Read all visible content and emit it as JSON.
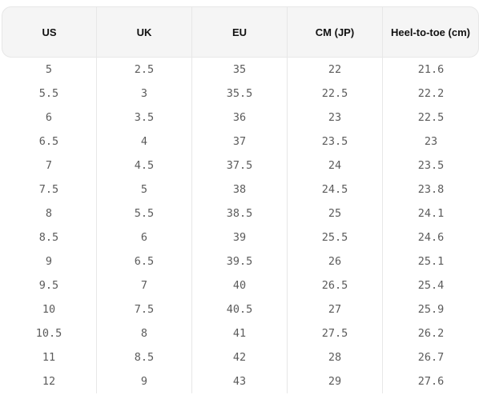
{
  "table": {
    "headers": [
      "US",
      "UK",
      "EU",
      "CM (JP)",
      "Heel-to-toe (cm)"
    ],
    "rows": [
      [
        "5",
        "2.5",
        "35",
        "22",
        "21.6"
      ],
      [
        "5.5",
        "3",
        "35.5",
        "22.5",
        "22.2"
      ],
      [
        "6",
        "3.5",
        "36",
        "23",
        "22.5"
      ],
      [
        "6.5",
        "4",
        "37",
        "23.5",
        "23"
      ],
      [
        "7",
        "4.5",
        "37.5",
        "24",
        "23.5"
      ],
      [
        "7.5",
        "5",
        "38",
        "24.5",
        "23.8"
      ],
      [
        "8",
        "5.5",
        "38.5",
        "25",
        "24.1"
      ],
      [
        "8.5",
        "6",
        "39",
        "25.5",
        "24.6"
      ],
      [
        "9",
        "6.5",
        "39.5",
        "26",
        "25.1"
      ],
      [
        "9.5",
        "7",
        "40",
        "26.5",
        "25.4"
      ],
      [
        "10",
        "7.5",
        "40.5",
        "27",
        "25.9"
      ],
      [
        "10.5",
        "8",
        "41",
        "27.5",
        "26.2"
      ],
      [
        "11",
        "8.5",
        "42",
        "28",
        "26.7"
      ],
      [
        "12",
        "9",
        "43",
        "29",
        "27.6"
      ]
    ]
  }
}
